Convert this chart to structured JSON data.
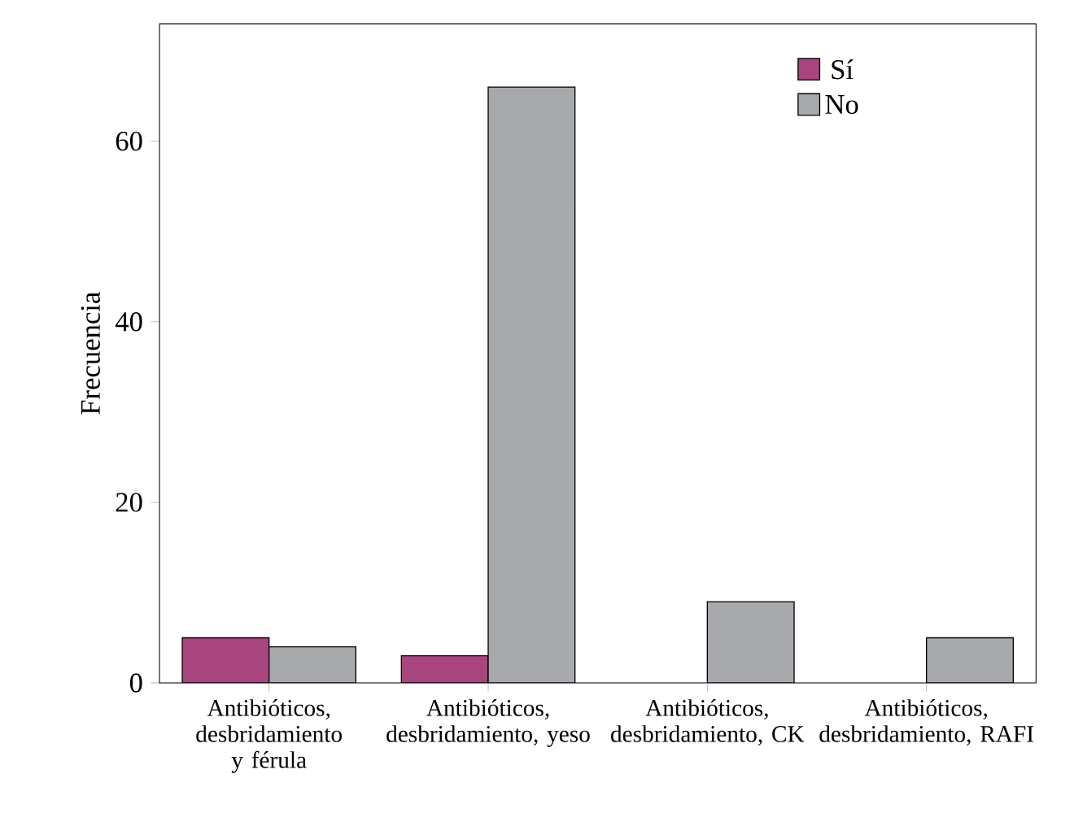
{
  "chart_data": {
    "type": "bar",
    "ylabel": "Frecuencia",
    "categories": [
      "Antibióticos, desbridamiento y férula",
      "Antibióticos, desbridamiento, yeso",
      "Antibióticos, desbridamiento, CK",
      "Antibióticos, desbridamiento, RAFI"
    ],
    "series": [
      {
        "name": "Sí",
        "color": "#a8457f",
        "values": [
          5,
          3,
          null,
          null
        ]
      },
      {
        "name": "No",
        "color": "#a7a9ac",
        "values": [
          4,
          66,
          9,
          5
        ]
      }
    ],
    "ylim": [
      0,
      73
    ],
    "yticks": [
      0,
      20,
      40,
      60
    ],
    "legend": "top right",
    "grid": false
  }
}
